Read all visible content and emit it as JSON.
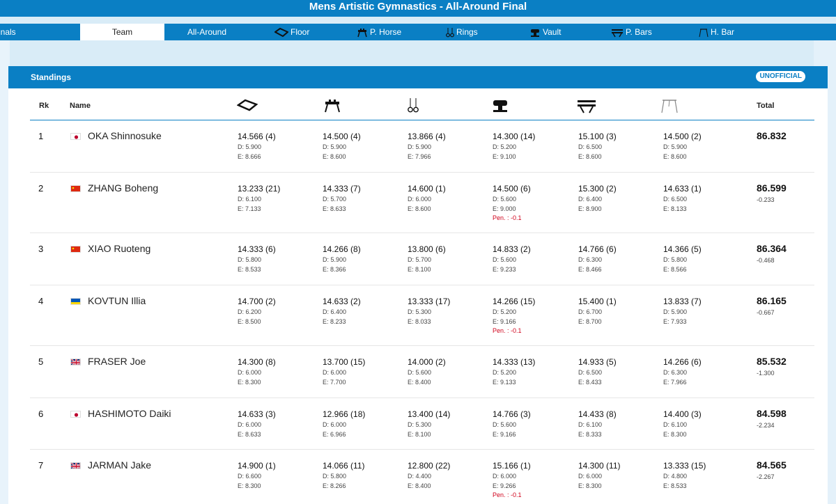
{
  "header": {
    "title": "Mens Artistic Gymnastics - All-Around Final"
  },
  "tabs": [
    {
      "label": "inals",
      "icon": ""
    },
    {
      "label": "Team",
      "icon": ""
    },
    {
      "label": "All-Around",
      "icon": ""
    },
    {
      "label": "Floor",
      "icon": "floor-icon"
    },
    {
      "label": "P. Horse",
      "icon": "pommel-horse-icon"
    },
    {
      "label": "Rings",
      "icon": "rings-icon"
    },
    {
      "label": "Vault",
      "icon": "vault-icon"
    },
    {
      "label": "P. Bars",
      "icon": "parallel-bars-icon"
    },
    {
      "label": "H. Bar",
      "icon": "high-bar-icon"
    }
  ],
  "standings": {
    "title": "Standings",
    "badge": "UNOFFICIAL",
    "col_rank": "Rk",
    "col_name": "Name",
    "col_total": "Total",
    "apparatus_icons": [
      "floor-icon",
      "pommel-horse-icon",
      "rings-icon",
      "vault-icon",
      "parallel-bars-icon",
      "high-bar-icon"
    ],
    "rows": [
      {
        "rank": "1",
        "flag": "japan-flag",
        "name": "OKA Shinnosuke",
        "scores": [
          {
            "s": "14.566 (4)",
            "d": "D: 5.900",
            "e": "E: 8.666",
            "pen": ""
          },
          {
            "s": "14.500 (4)",
            "d": "D: 5.900",
            "e": "E: 8.600",
            "pen": ""
          },
          {
            "s": "13.866 (4)",
            "d": "D: 5.900",
            "e": "E: 7.966",
            "pen": ""
          },
          {
            "s": "14.300 (14)",
            "d": "D: 5.200",
            "e": "E: 9.100",
            "pen": ""
          },
          {
            "s": "15.100 (3)",
            "d": "D: 6.500",
            "e": "E: 8.600",
            "pen": ""
          },
          {
            "s": "14.500 (2)",
            "d": "D: 5.900",
            "e": "E: 8.600",
            "pen": ""
          }
        ],
        "total": "86.832",
        "gap": ""
      },
      {
        "rank": "2",
        "flag": "china-flag",
        "name": "ZHANG Boheng",
        "scores": [
          {
            "s": "13.233 (21)",
            "d": "D: 6.100",
            "e": "E: 7.133",
            "pen": ""
          },
          {
            "s": "14.333 (7)",
            "d": "D: 5.700",
            "e": "E: 8.633",
            "pen": ""
          },
          {
            "s": "14.600 (1)",
            "d": "D: 6.000",
            "e": "E: 8.600",
            "pen": ""
          },
          {
            "s": "14.500 (6)",
            "d": "D: 5.600",
            "e": "E: 9.000",
            "pen": "Pen. : -0.1"
          },
          {
            "s": "15.300 (2)",
            "d": "D: 6.400",
            "e": "E: 8.900",
            "pen": ""
          },
          {
            "s": "14.633 (1)",
            "d": "D: 6.500",
            "e": "E: 8.133",
            "pen": ""
          }
        ],
        "total": "86.599",
        "gap": "-0.233"
      },
      {
        "rank": "3",
        "flag": "china-flag",
        "name": "XIAO Ruoteng",
        "scores": [
          {
            "s": "14.333 (6)",
            "d": "D: 5.800",
            "e": "E: 8.533",
            "pen": ""
          },
          {
            "s": "14.266 (8)",
            "d": "D: 5.900",
            "e": "E: 8.366",
            "pen": ""
          },
          {
            "s": "13.800 (6)",
            "d": "D: 5.700",
            "e": "E: 8.100",
            "pen": ""
          },
          {
            "s": "14.833 (2)",
            "d": "D: 5.600",
            "e": "E: 9.233",
            "pen": ""
          },
          {
            "s": "14.766 (6)",
            "d": "D: 6.300",
            "e": "E: 8.466",
            "pen": ""
          },
          {
            "s": "14.366 (5)",
            "d": "D: 5.800",
            "e": "E: 8.566",
            "pen": ""
          }
        ],
        "total": "86.364",
        "gap": "-0.468"
      },
      {
        "rank": "4",
        "flag": "ukraine-flag",
        "name": "KOVTUN Illia",
        "scores": [
          {
            "s": "14.700 (2)",
            "d": "D: 6.200",
            "e": "E: 8.500",
            "pen": ""
          },
          {
            "s": "14.633 (2)",
            "d": "D: 6.400",
            "e": "E: 8.233",
            "pen": ""
          },
          {
            "s": "13.333 (17)",
            "d": "D: 5.300",
            "e": "E: 8.033",
            "pen": ""
          },
          {
            "s": "14.266 (15)",
            "d": "D: 5.200",
            "e": "E: 9.166",
            "pen": "Pen. : -0.1"
          },
          {
            "s": "15.400 (1)",
            "d": "D: 6.700",
            "e": "E: 8.700",
            "pen": ""
          },
          {
            "s": "13.833 (7)",
            "d": "D: 5.900",
            "e": "E: 7.933",
            "pen": ""
          }
        ],
        "total": "86.165",
        "gap": "-0.667"
      },
      {
        "rank": "5",
        "flag": "uk-flag",
        "name": "FRASER Joe",
        "scores": [
          {
            "s": "14.300 (8)",
            "d": "D: 6.000",
            "e": "E: 8.300",
            "pen": ""
          },
          {
            "s": "13.700 (15)",
            "d": "D: 6.000",
            "e": "E: 7.700",
            "pen": ""
          },
          {
            "s": "14.000 (2)",
            "d": "D: 5.600",
            "e": "E: 8.400",
            "pen": ""
          },
          {
            "s": "14.333 (13)",
            "d": "D: 5.200",
            "e": "E: 9.133",
            "pen": ""
          },
          {
            "s": "14.933 (5)",
            "d": "D: 6.500",
            "e": "E: 8.433",
            "pen": ""
          },
          {
            "s": "14.266 (6)",
            "d": "D: 6.300",
            "e": "E: 7.966",
            "pen": ""
          }
        ],
        "total": "85.532",
        "gap": "-1.300"
      },
      {
        "rank": "6",
        "flag": "japan-flag",
        "name": "HASHIMOTO Daiki",
        "scores": [
          {
            "s": "14.633 (3)",
            "d": "D: 6.000",
            "e": "E: 8.633",
            "pen": ""
          },
          {
            "s": "12.966 (18)",
            "d": "D: 6.000",
            "e": "E: 6.966",
            "pen": ""
          },
          {
            "s": "13.400 (14)",
            "d": "D: 5.300",
            "e": "E: 8.100",
            "pen": ""
          },
          {
            "s": "14.766 (3)",
            "d": "D: 5.600",
            "e": "E: 9.166",
            "pen": ""
          },
          {
            "s": "14.433 (8)",
            "d": "D: 6.100",
            "e": "E: 8.333",
            "pen": ""
          },
          {
            "s": "14.400 (3)",
            "d": "D: 6.100",
            "e": "E: 8.300",
            "pen": ""
          }
        ],
        "total": "84.598",
        "gap": "-2.234"
      },
      {
        "rank": "7",
        "flag": "uk-flag",
        "name": "JARMAN Jake",
        "scores": [
          {
            "s": "14.900 (1)",
            "d": "D: 6.600",
            "e": "E: 8.300",
            "pen": ""
          },
          {
            "s": "14.066 (11)",
            "d": "D: 5.800",
            "e": "E: 8.266",
            "pen": ""
          },
          {
            "s": "12.800 (22)",
            "d": "D: 4.400",
            "e": "E: 8.400",
            "pen": ""
          },
          {
            "s": "15.166 (1)",
            "d": "D: 6.000",
            "e": "E: 9.266",
            "pen": "Pen. : -0.1"
          },
          {
            "s": "14.300 (11)",
            "d": "D: 6.000",
            "e": "E: 8.300",
            "pen": ""
          },
          {
            "s": "13.333 (15)",
            "d": "D: 4.800",
            "e": "E: 8.533",
            "pen": ""
          }
        ],
        "total": "84.565",
        "gap": "-2.267"
      }
    ]
  }
}
